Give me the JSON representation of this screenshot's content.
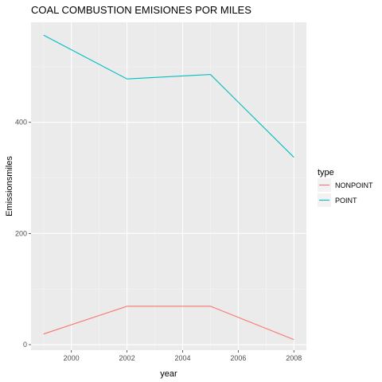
{
  "chart_data": {
    "type": "line",
    "title": "COAL COMBUSTION EMISIONES POR MILES",
    "xlabel": "year",
    "ylabel": "Emissionsmiles",
    "x": [
      1999,
      2002,
      2005,
      2008
    ],
    "xlim": [
      1998.55,
      2008.45
    ],
    "ylim": [
      -10,
      580
    ],
    "x_ticks": [
      2000,
      2002,
      2004,
      2006,
      2008
    ],
    "y_ticks": [
      0,
      200,
      400
    ],
    "grid": true,
    "legend": {
      "title": "type",
      "placement": "right"
    },
    "series": [
      {
        "name": "NONPOINT",
        "color": "#f8766d",
        "values": [
          19,
          69,
          69,
          9
        ]
      },
      {
        "name": "POINT",
        "color": "#00bfc4",
        "values": [
          557,
          478,
          486,
          337
        ]
      }
    ]
  }
}
